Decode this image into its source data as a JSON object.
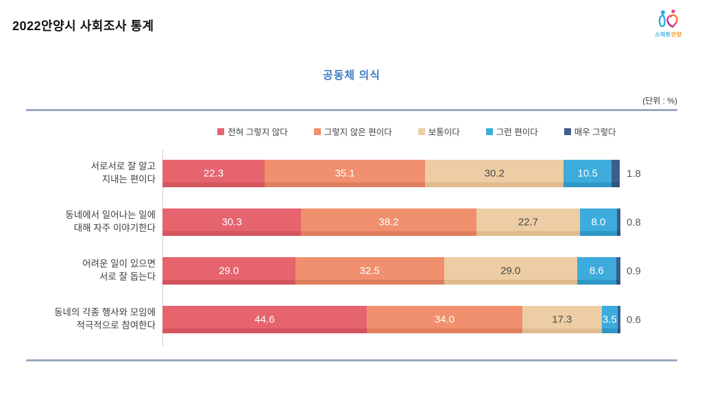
{
  "page": {
    "title": "2022안양시 사회조사 통계"
  },
  "logo": {
    "text_blue": "스마트",
    "text_orange": "안양"
  },
  "chart": {
    "title": "공동체 의식",
    "unit_label": "(단위 : %)",
    "rule_color": "#97a9c1",
    "outside_value_color": "#595959"
  },
  "chart_data": {
    "type": "bar",
    "orientation": "horizontal-stacked",
    "title": "공동체 의식",
    "unit": "%",
    "xlim": [
      0,
      100
    ],
    "legend_position": "top",
    "value_labels": true,
    "categories": [
      [
        "서로서로 잘 알고",
        "지내는 편이다"
      ],
      [
        "동네에서 일어나는 일에",
        "대해 자주 이야기한다"
      ],
      [
        "어려운 일이 있으면",
        "서로 잘 돕는다"
      ],
      [
        "동네의 각종 행사와 모임에",
        "적극적으로 참여한다"
      ]
    ],
    "series": [
      {
        "name": "전혀 그렇지 않다",
        "color": "#e5646e",
        "color_dark": "#d4545f",
        "label_color": "#ffffff",
        "values": [
          22.3,
          30.3,
          29.0,
          44.6
        ]
      },
      {
        "name": "그렇지 않은 편이다",
        "color": "#f0906e",
        "color_dark": "#e07f5e",
        "label_color": "#ffffff",
        "values": [
          35.1,
          38.2,
          32.5,
          34.0
        ]
      },
      {
        "name": "보통이다",
        "color": "#edcda4",
        "color_dark": "#dfbb8f",
        "label_color": "#4a4a4a",
        "values": [
          30.2,
          22.7,
          29.0,
          17.3
        ]
      },
      {
        "name": "그런 편이다",
        "color": "#3dabdc",
        "color_dark": "#2f97c6",
        "label_color": "#ffffff",
        "values": [
          10.5,
          8.0,
          8.6,
          3.5
        ]
      },
      {
        "name": "매우 그렇다",
        "color": "#3c5e8f",
        "color_dark": "#33527e",
        "label_color": "#ffffff",
        "values": [
          1.8,
          0.8,
          0.9,
          0.6
        ],
        "label_outside": true
      }
    ]
  }
}
